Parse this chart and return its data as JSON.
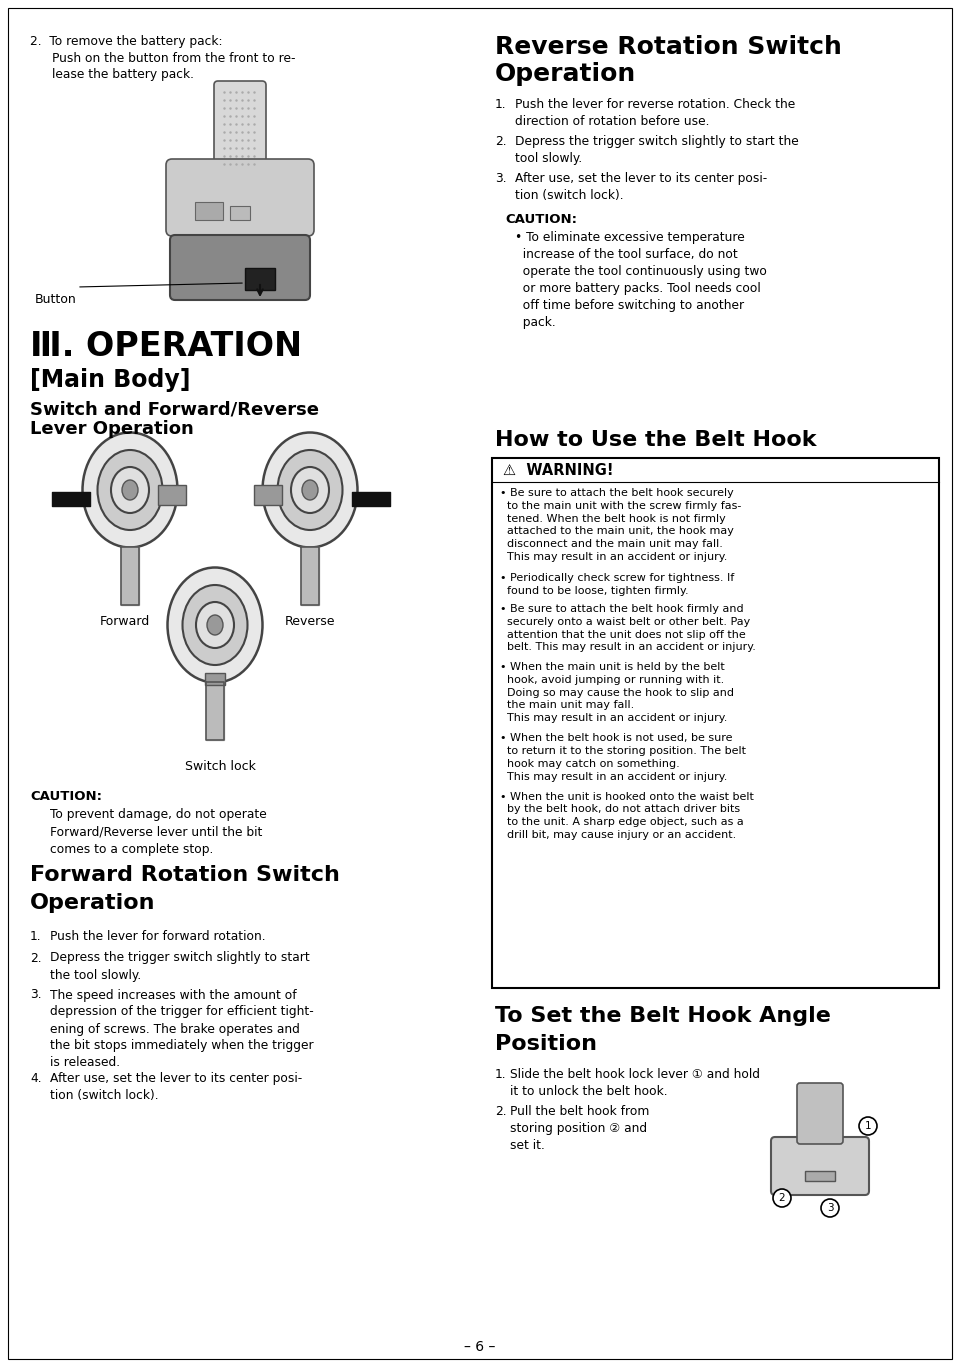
{
  "page_bg": "#ffffff",
  "page_num": "– 6 –",
  "left_col": {
    "item2_line1": "2.  To remove the battery pack:",
    "item2_line2": "Push on the button from the front to re-",
    "item2_line3": "lease the battery pack.",
    "button_label": "Button",
    "operation_heading": "Ⅲ. OPERATION",
    "main_body_heading": "[Main Body]",
    "switch_heading1": "Switch and Forward/Reverse",
    "switch_heading2": "Lever Operation",
    "forward_label": "Forward",
    "reverse_label": "Reverse",
    "switch_lock_label": "Switch lock",
    "caution_head": "CAUTION:",
    "caution_body": "To prevent damage, do not operate\nForward/Reverse lever until the bit\ncomes to a complete stop.",
    "fwd_heading1": "Forward Rotation Switch",
    "fwd_heading2": "Operation",
    "fwd_items": [
      "Push the lever for forward rotation.",
      "Depress the trigger switch slightly to start\nthe tool slowly.",
      "The speed increases with the amount of\ndepression of the trigger for efficient tight-\nening of screws. The brake operates and\nthe bit stops immediately when the trigger\nis released.",
      "After use, set the lever to its center posi-\ntion (switch lock)."
    ]
  },
  "right_col": {
    "rev_heading1": "Reverse Rotation Switch",
    "rev_heading2": "Operation",
    "rev_items": [
      "Push the lever for reverse rotation. Check the\ndirection of rotation before use.",
      "Depress the trigger switch slightly to start the\ntool slowly.",
      "After use, set the lever to its center posi-\ntion (switch lock)."
    ],
    "caution_head": "CAUTION:",
    "caution_bullet": "• To eliminate excessive temperature\n  increase of the tool surface, do not\n  operate the tool continuously using two\n  or more battery packs. Tool needs cool\n  off time before switching to another\n  pack.",
    "belt_heading": "How to Use the Belt Hook",
    "warning_head": "⚠  WARNING!",
    "warning_items": [
      "• Be sure to attach the belt hook securely\n  to the main unit with the screw firmly fas-\n  tened. When the belt hook is not firmly\n  attached to the main unit, the hook may\n  disconnect and the main unit may fall.\n  This may result in an accident or injury.",
      "• Periodically check screw for tightness. If\n  found to be loose, tighten firmly.",
      "• Be sure to attach the belt hook firmly and\n  securely onto a waist belt or other belt. Pay\n  attention that the unit does not slip off the\n  belt. This may result in an accident or injury.",
      "• When the main unit is held by the belt\n  hook, avoid jumping or running with it.\n  Doing so may cause the hook to slip and\n  the main unit may fall.\n  This may result in an accident or injury.",
      "• When the belt hook is not used, be sure\n  to return it to the storing position. The belt\n  hook may catch on something.\n  This may result in an accident or injury.",
      "• When the unit is hooked onto the waist belt\n  by the belt hook, do not attach driver bits\n  to the unit. A sharp edge object, such as a\n  drill bit, may cause injury or an accident."
    ],
    "set_heading1": "To Set the Belt Hook Angle",
    "set_heading2": "Position",
    "set_items": [
      "Slide the belt hook lock lever ① and hold\nit to unlock the belt hook.",
      "Pull the belt hook from\nstoring position ② and\nset it."
    ]
  }
}
